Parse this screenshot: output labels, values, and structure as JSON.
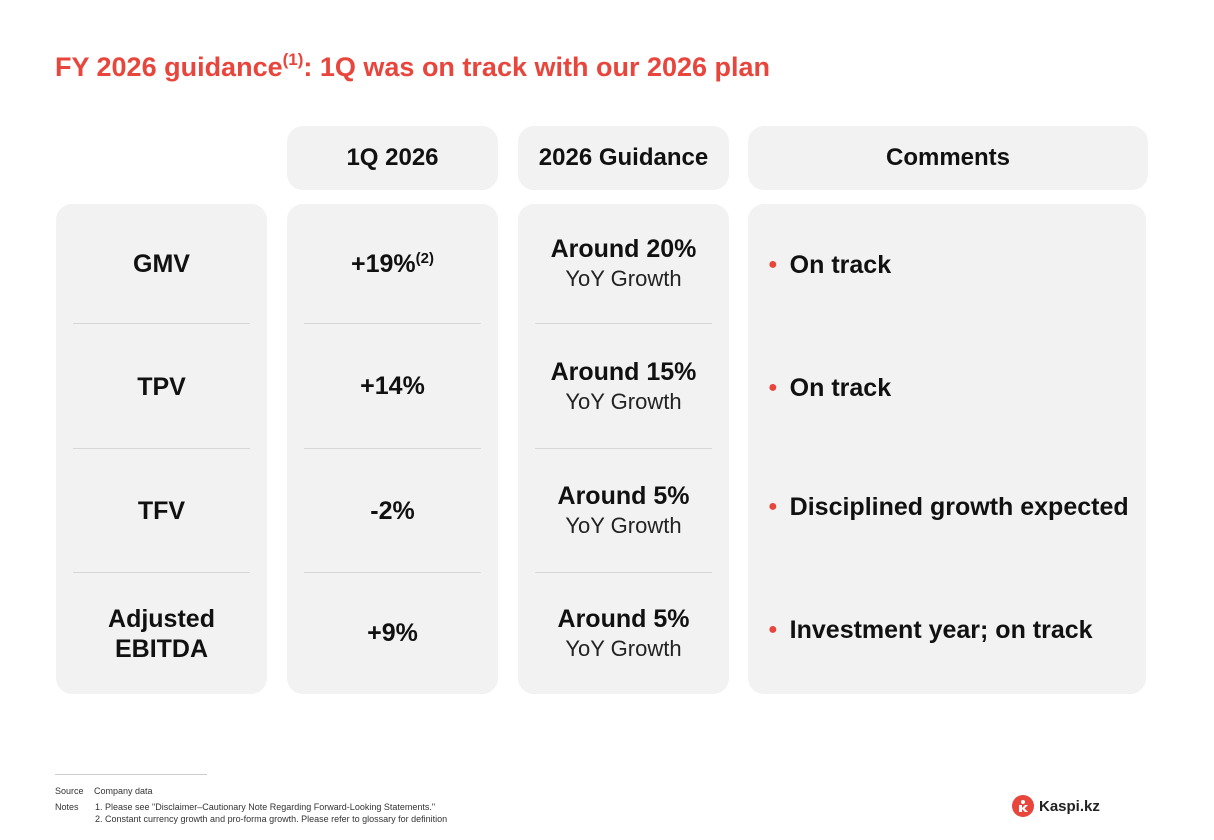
{
  "title": {
    "text": "FY 2026 guidance",
    "sup": "(1)",
    "rest": ": 1Q was on track with our 2026 plan"
  },
  "headers": {
    "q1": "1Q 2026",
    "guidance": "2026 Guidance",
    "comments": "Comments"
  },
  "rows": [
    {
      "metric": "GMV",
      "q1": "+19%",
      "q1_sup": "(2)",
      "guidance": "Around 20%",
      "guidance_sub": "YoY Growth",
      "comment": "On track"
    },
    {
      "metric": "TPV",
      "q1": "+14%",
      "guidance": "Around 15%",
      "guidance_sub": "YoY Growth",
      "comment": "On track"
    },
    {
      "metric": "TFV",
      "q1": "-2%",
      "guidance": "Around 5%",
      "guidance_sub": "YoY Growth",
      "comment": "Disciplined growth expected"
    },
    {
      "metric_line1": "Adjusted",
      "metric_line2": "EBITDA",
      "q1": "+9%",
      "guidance": "Around 5%",
      "guidance_sub": "YoY Growth",
      "comment": "Investment year; on track"
    }
  ],
  "footer": {
    "source_label": "Source",
    "source_text": "Company data",
    "notes_label": "Notes",
    "note1": "1. Please see \"Disclaimer–Cautionary Note Regarding Forward-Looking Statements.\"",
    "note2": "2. Constant currency growth and pro-forma growth. Please refer to glossary for definition"
  },
  "logo": {
    "text": "Kaspi.kz"
  },
  "colors": {
    "accent": "#e8453c",
    "panel": "#f2f2f2",
    "divider": "#d6d6d6"
  }
}
